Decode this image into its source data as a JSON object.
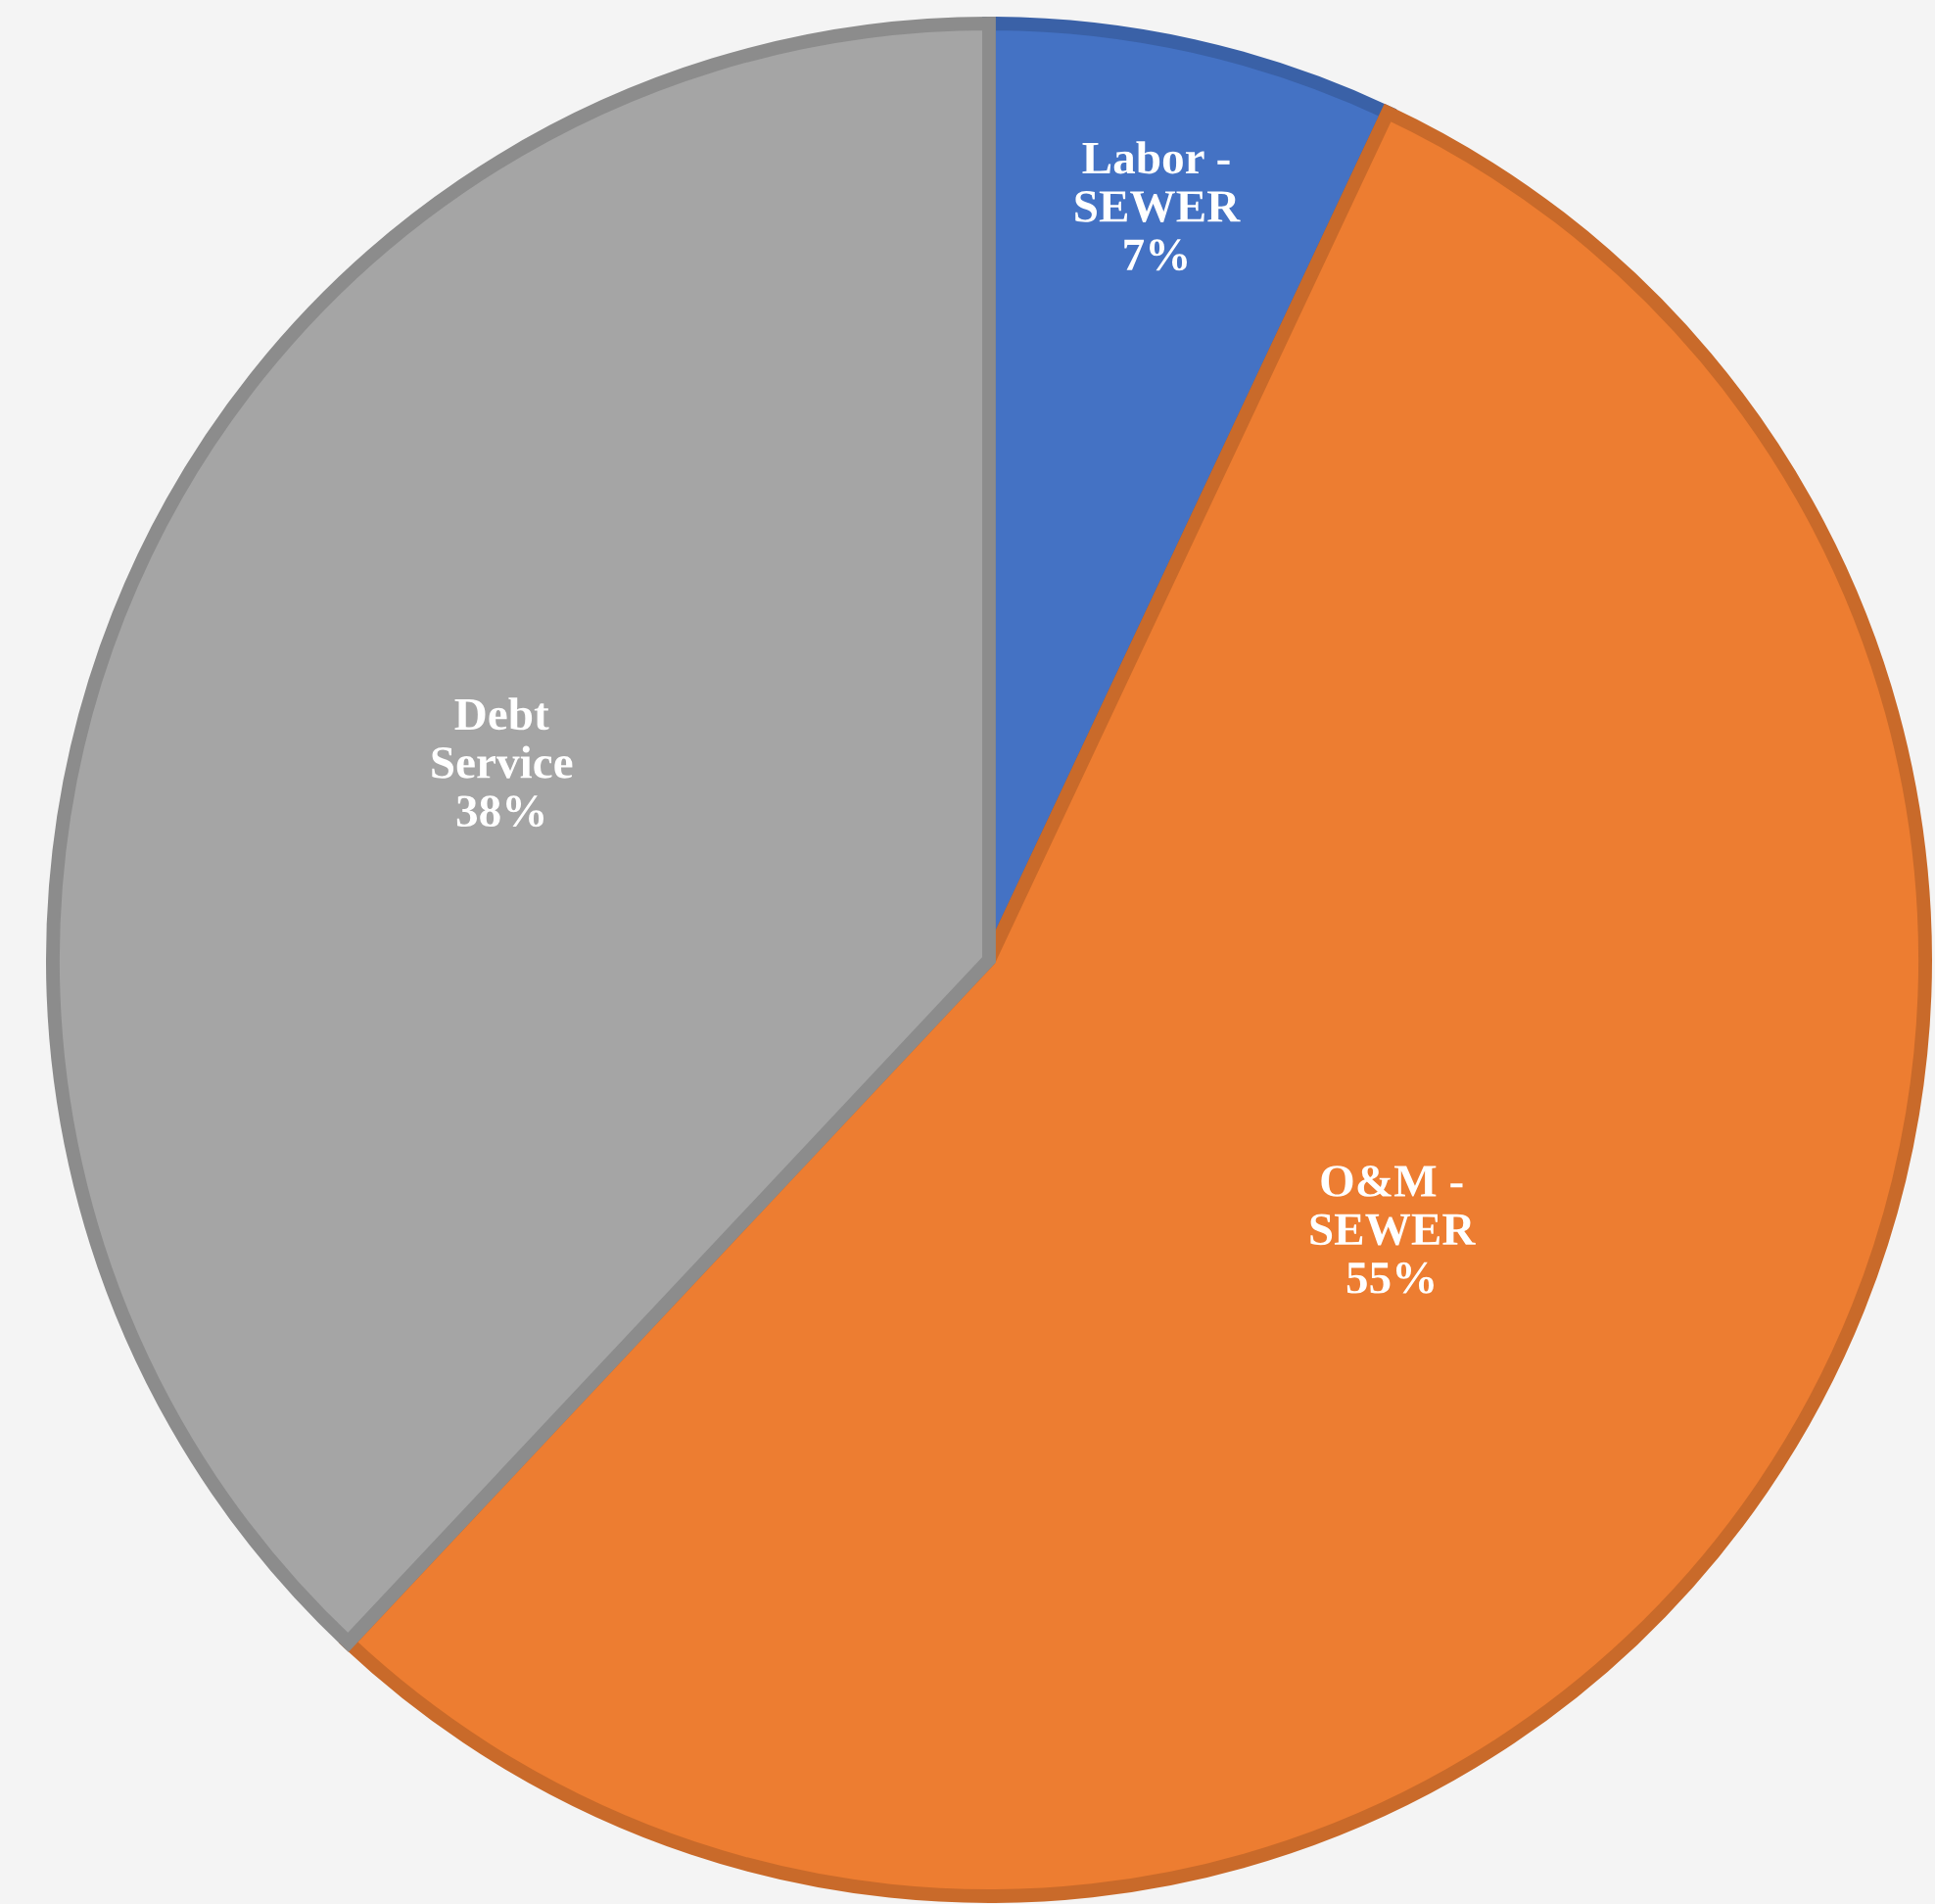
{
  "chart_data": {
    "type": "pie",
    "categories": [
      "Labor - SEWER",
      "O&M - SEWER",
      "Debt Service"
    ],
    "values": [
      7,
      55,
      38
    ],
    "value_labels": [
      "7%",
      "55%",
      "38%"
    ],
    "colors": [
      "#4472c4",
      "#ed7d31",
      "#a5a5a5"
    ],
    "legend": false
  }
}
